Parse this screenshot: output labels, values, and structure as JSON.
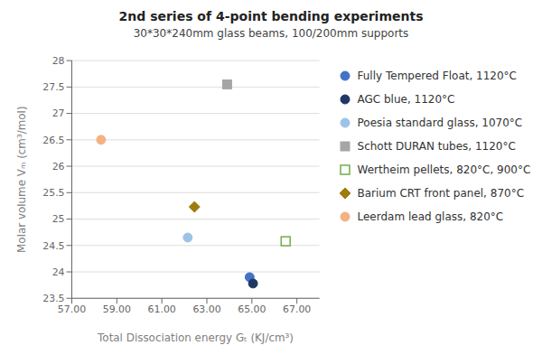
{
  "chart_data": {
    "type": "scatter",
    "title": "2nd series of 4-point bending experiments",
    "subtitle": "30*30*240mm glass beams, 100/200mm supports",
    "xlabel": "Total Dissociation energy Gₜ (KJ/cm³)",
    "ylabel": "Molar volume Vₘ (cm³/mol)",
    "xlim": [
      57.0,
      68.0
    ],
    "ylim": [
      23.5,
      28.0
    ],
    "xticks": [
      {
        "value": 57,
        "label": "57.00"
      },
      {
        "value": 59,
        "label": "59.00"
      },
      {
        "value": 61,
        "label": "61.00"
      },
      {
        "value": 63,
        "label": "63.00"
      },
      {
        "value": 65,
        "label": "65.00"
      },
      {
        "value": 67,
        "label": "67.00"
      }
    ],
    "yticks": [
      23.5,
      24,
      24.5,
      25,
      25.5,
      26,
      26.5,
      27,
      27.5,
      28
    ],
    "grid": "y",
    "legend": "right",
    "series": [
      {
        "name": "Fully Tempered Float, 1120°C",
        "color": "#4472C4",
        "marker": "circle",
        "x": [
          64.9
        ],
        "y": [
          23.9
        ]
      },
      {
        "name": "AGC blue, 1120°C",
        "color": "#1F3864",
        "marker": "circle",
        "x": [
          65.05
        ],
        "y": [
          23.78
        ]
      },
      {
        "name": "Poesia standard glass, 1070°C",
        "color": "#9DC3E6",
        "marker": "circle",
        "x": [
          62.15
        ],
        "y": [
          24.65
        ]
      },
      {
        "name": "Schott DURAN tubes, 1120°C",
        "color": "#A5A5A5",
        "marker": "square",
        "x": [
          63.9
        ],
        "y": [
          27.55
        ]
      },
      {
        "name": "Wertheim pellets, 820°C, 900°C",
        "color": "#70AD47",
        "marker": "hollow-square",
        "x": [
          66.5
        ],
        "y": [
          24.58
        ]
      },
      {
        "name": "Barium CRT front panel, 870°C",
        "color": "#9E7C0C",
        "marker": "diamond",
        "x": [
          62.45
        ],
        "y": [
          25.23
        ]
      },
      {
        "name": "Leerdam lead glass, 820°C",
        "color": "#F4B183",
        "marker": "circle",
        "x": [
          58.3
        ],
        "y": [
          26.5
        ]
      }
    ]
  }
}
